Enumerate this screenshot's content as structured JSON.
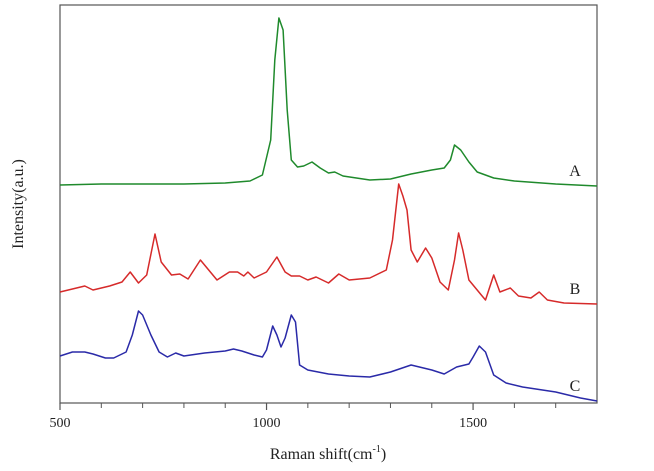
{
  "chart_data": {
    "type": "line",
    "title": "",
    "xlabel": "Raman shift(cm",
    "xlabel_sup": "-1",
    "xlabel_close": ")",
    "ylabel": "Intensity(a.u.)",
    "xlim": [
      500,
      1800
    ],
    "ylim": [
      0,
      99.5
    ],
    "x_major_ticks": [
      500,
      1000,
      1500
    ],
    "x_minor_ticks": [
      600,
      700,
      800,
      900,
      1100,
      1200,
      1300,
      1400,
      1600,
      1700
    ],
    "grid": false,
    "legend": "inline labels at right end of each trace",
    "series": [
      {
        "name": "A",
        "color": "#1f8a2c",
        "x": [
          500,
          600,
          700,
          800,
          900,
          960,
          990,
          1010,
          1020,
          1030,
          1040,
          1050,
          1060,
          1075,
          1090,
          1110,
          1130,
          1150,
          1165,
          1185,
          1250,
          1300,
          1350,
          1400,
          1430,
          1445,
          1455,
          1470,
          1490,
          1510,
          1550,
          1600,
          1700,
          1800
        ],
        "y": [
          54.5,
          54.75,
          54.75,
          54.75,
          55,
          55.5,
          57,
          65.75,
          85.75,
          96.25,
          93.25,
          73.25,
          60.75,
          59,
          59.25,
          60.25,
          58.75,
          57.5,
          57.75,
          56.75,
          55.75,
          56,
          57.25,
          58.25,
          58.75,
          60.75,
          64.5,
          63.25,
          60.25,
          57.75,
          56.25,
          55.5,
          54.75,
          54.25
        ]
      },
      {
        "name": "B",
        "color": "#d62a2a",
        "x": [
          500,
          560,
          580,
          620,
          650,
          670,
          690,
          710,
          730,
          745,
          770,
          790,
          810,
          840,
          860,
          880,
          910,
          930,
          945,
          955,
          970,
          1000,
          1025,
          1045,
          1060,
          1080,
          1100,
          1120,
          1150,
          1175,
          1200,
          1250,
          1290,
          1305,
          1320,
          1330,
          1340,
          1350,
          1365,
          1385,
          1400,
          1420,
          1440,
          1455,
          1465,
          1475,
          1490,
          1520,
          1530,
          1550,
          1565,
          1590,
          1610,
          1640,
          1660,
          1680,
          1720,
          1800
        ],
        "y": [
          27.75,
          29.25,
          28.25,
          29.25,
          30.25,
          32.75,
          30,
          32,
          42.25,
          35.25,
          32,
          32.25,
          31,
          35.75,
          33.25,
          30.75,
          32.75,
          32.75,
          31.75,
          32.75,
          31.25,
          32.75,
          36.5,
          32.75,
          31.75,
          31.75,
          30.75,
          31.5,
          30,
          32.25,
          30.75,
          31.25,
          33.25,
          40.75,
          54.75,
          51.75,
          48.25,
          38.25,
          35.25,
          38.75,
          36.25,
          30.25,
          28.25,
          35.75,
          42.5,
          38.25,
          30.75,
          27,
          25.75,
          32,
          27.75,
          28.75,
          26.75,
          26.25,
          27.75,
          25.75,
          25,
          24.75
        ]
      },
      {
        "name": "C",
        "color": "#2a2aa8",
        "x": [
          500,
          530,
          560,
          580,
          610,
          630,
          660,
          675,
          690,
          700,
          720,
          740,
          760,
          780,
          800,
          850,
          900,
          920,
          940,
          970,
          990,
          1000,
          1015,
          1025,
          1035,
          1045,
          1060,
          1070,
          1080,
          1100,
          1150,
          1200,
          1250,
          1300,
          1350,
          1400,
          1430,
          1460,
          1490,
          1500,
          1515,
          1530,
          1550,
          1580,
          1620,
          1700,
          1760,
          1800
        ],
        "y": [
          11.75,
          12.75,
          12.75,
          12.25,
          11.25,
          11.25,
          12.75,
          17,
          23,
          22,
          17,
          12.75,
          11.5,
          12.5,
          11.75,
          12.5,
          13,
          13.5,
          13,
          12,
          11.5,
          13.25,
          19.25,
          17,
          14,
          16.25,
          22,
          20.25,
          9.5,
          8.25,
          7.25,
          6.75,
          6.5,
          7.75,
          9.5,
          8.25,
          7.25,
          9,
          9.75,
          11.5,
          14.25,
          12.75,
          7,
          5,
          4,
          2.75,
          1.25,
          0.5
        ]
      }
    ]
  }
}
